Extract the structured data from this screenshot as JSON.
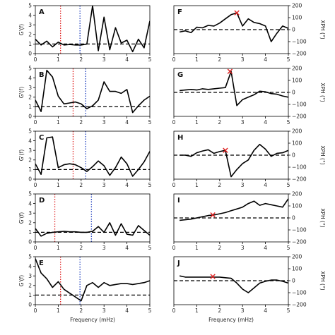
{
  "chart_data": [
    {
      "panel": "A",
      "side": "left",
      "type": "line",
      "ylabel": "G'(f)",
      "xlabel": "",
      "xlim": [
        0,
        5
      ],
      "ylim": [
        0,
        5
      ],
      "ref": 1,
      "red": 1.1,
      "blue": 1.95,
      "x": [
        0,
        0.25,
        0.5,
        0.75,
        1.0,
        1.25,
        1.5,
        1.75,
        2.0,
        2.25,
        2.5,
        2.75,
        3.0,
        3.25,
        3.5,
        3.75,
        4.0,
        4.25,
        4.5,
        4.75,
        5.0
      ],
      "y": [
        1.5,
        0.9,
        1.3,
        0.7,
        1.2,
        0.9,
        0.95,
        0.9,
        0.9,
        1.0,
        5.0,
        0.3,
        3.8,
        0.4,
        2.7,
        1.1,
        1.4,
        0.2,
        1.5,
        0.6,
        3.4
      ]
    },
    {
      "panel": "B",
      "side": "left",
      "type": "line",
      "ylabel": "G'(f)",
      "xlabel": "",
      "xlim": [
        0,
        5
      ],
      "ylim": [
        0,
        5
      ],
      "ref": 1,
      "red": 1.65,
      "blue": 2.2,
      "x": [
        0,
        0.25,
        0.5,
        0.75,
        1.0,
        1.25,
        1.5,
        1.75,
        2.0,
        2.25,
        2.5,
        2.75,
        3.0,
        3.25,
        3.5,
        3.75,
        4.0,
        4.25,
        4.5,
        4.75,
        5.0
      ],
      "y": [
        1.7,
        0.5,
        4.8,
        4.1,
        2.1,
        1.3,
        1.4,
        1.5,
        1.3,
        0.8,
        1.1,
        1.7,
        3.6,
        2.6,
        2.6,
        2.4,
        2.8,
        0.4,
        1.1,
        1.7,
        2.1
      ]
    },
    {
      "panel": "C",
      "side": "left",
      "type": "line",
      "ylabel": "G'(f)",
      "xlabel": "",
      "xlim": [
        0,
        5
      ],
      "ylim": [
        0,
        5
      ],
      "ref": 1,
      "red": 1.65,
      "blue": 2.2,
      "x": [
        0,
        0.25,
        0.5,
        0.75,
        1.0,
        1.25,
        1.5,
        1.75,
        2.0,
        2.25,
        2.5,
        2.75,
        3.0,
        3.25,
        3.5,
        3.75,
        4.0,
        4.25,
        4.5,
        4.75,
        5.0
      ],
      "y": [
        1.6,
        0.5,
        4.3,
        4.4,
        1.2,
        1.5,
        1.6,
        1.5,
        1.2,
        0.8,
        1.3,
        1.9,
        1.4,
        0.4,
        1.2,
        2.3,
        1.6,
        0.3,
        1.0,
        1.8,
        2.9
      ]
    },
    {
      "panel": "D",
      "side": "left",
      "type": "line",
      "ylabel": "G'(f)",
      "xlabel": "",
      "xlim": [
        0,
        5
      ],
      "ylim": [
        0,
        5
      ],
      "ref": 1,
      "red": 0.85,
      "blue": 2.45,
      "x": [
        0,
        0.25,
        0.5,
        0.75,
        1.0,
        1.25,
        1.5,
        1.75,
        2.0,
        2.25,
        2.5,
        2.75,
        3.0,
        3.25,
        3.5,
        3.75,
        4.0,
        4.25,
        4.5,
        4.75,
        5.0
      ],
      "y": [
        1.4,
        0.6,
        0.9,
        1.0,
        1.05,
        1.1,
        1.05,
        1.05,
        1.0,
        1.0,
        1.1,
        1.6,
        1.0,
        2.0,
        0.7,
        1.9,
        0.8,
        0.7,
        1.7,
        1.2,
        0.7
      ]
    },
    {
      "panel": "E",
      "side": "left",
      "type": "line",
      "ylabel": "G'(f)",
      "xlabel": "Frequency (mHz)",
      "xlim": [
        0,
        5
      ],
      "ylim": [
        0,
        5
      ],
      "ref": 1,
      "red": 1.1,
      "blue": 1.95,
      "x": [
        0,
        0.25,
        0.5,
        0.75,
        1.0,
        1.25,
        1.5,
        1.75,
        2.0,
        2.25,
        2.5,
        2.75,
        3.0,
        3.25,
        3.5,
        3.75,
        4.0,
        4.25,
        4.5,
        4.75,
        5.0
      ],
      "y": [
        4.8,
        3.3,
        2.7,
        1.8,
        2.4,
        1.6,
        1.2,
        0.8,
        0.4,
        2.0,
        2.3,
        1.8,
        2.3,
        2.0,
        2.1,
        2.2,
        2.2,
        2.1,
        2.2,
        2.3,
        2.5
      ]
    },
    {
      "panel": "F",
      "side": "right",
      "type": "line",
      "ylabel": "XPH (°)",
      "xlabel": "",
      "xlim": [
        0,
        5
      ],
      "ylim": [
        -200,
        200
      ],
      "ref": 0,
      "marker": [
        2.75,
        140
      ],
      "x": [
        0.25,
        0.5,
        0.75,
        1.0,
        1.25,
        1.5,
        1.75,
        2.0,
        2.25,
        2.5,
        2.75,
        3.0,
        3.25,
        3.5,
        3.75,
        4.0,
        4.25,
        4.5,
        4.75,
        5.0
      ],
      "y": [
        -20,
        -10,
        -25,
        20,
        15,
        35,
        30,
        55,
        90,
        125,
        140,
        30,
        90,
        60,
        50,
        30,
        -100,
        -30,
        30,
        10
      ]
    },
    {
      "panel": "G",
      "side": "right",
      "type": "line",
      "ylabel": "XPH (°)",
      "xlabel": "",
      "xlim": [
        0,
        5
      ],
      "ylim": [
        -200,
        200
      ],
      "ref": 0,
      "marker": [
        2.45,
        175
      ],
      "x": [
        0.25,
        0.5,
        0.75,
        1.0,
        1.25,
        1.5,
        1.75,
        2.0,
        2.25,
        2.5,
        2.75,
        3.0,
        3.25,
        3.5,
        3.75,
        4.0,
        4.25,
        4.5,
        4.75,
        5.0
      ],
      "y": [
        15,
        20,
        25,
        20,
        30,
        25,
        30,
        35,
        40,
        175,
        -110,
        -60,
        -40,
        -20,
        10,
        5,
        -10,
        -15,
        -30,
        -40
      ]
    },
    {
      "panel": "H",
      "side": "right",
      "type": "line",
      "ylabel": "XPH (°)",
      "xlabel": "",
      "xlim": [
        0,
        5
      ],
      "ylim": [
        -200,
        200
      ],
      "ref": 0,
      "marker": [
        2.25,
        40
      ],
      "x": [
        0.25,
        0.5,
        0.75,
        1.0,
        1.25,
        1.5,
        1.75,
        2.0,
        2.25,
        2.5,
        2.75,
        3.0,
        3.25,
        3.5,
        3.75,
        4.0,
        4.25,
        4.5,
        4.75,
        5.0
      ],
      "y": [
        0,
        0,
        -10,
        20,
        35,
        45,
        15,
        30,
        40,
        -180,
        -120,
        -70,
        -40,
        40,
        90,
        50,
        -10,
        15,
        20,
        40
      ]
    },
    {
      "panel": "I",
      "side": "right",
      "type": "line",
      "ylabel": "XPH (°)",
      "xlabel": "",
      "xlim": [
        0,
        5
      ],
      "ylim": [
        -200,
        200
      ],
      "ref": 0,
      "marker": [
        1.7,
        25
      ],
      "x": [
        0.25,
        0.5,
        0.75,
        1.0,
        1.25,
        1.5,
        1.75,
        2.0,
        2.25,
        2.5,
        2.75,
        3.0,
        3.25,
        3.5,
        3.75,
        4.0,
        4.25,
        4.5,
        4.75,
        5.0
      ],
      "y": [
        -20,
        -15,
        -10,
        0,
        10,
        20,
        25,
        35,
        45,
        60,
        75,
        90,
        120,
        140,
        105,
        120,
        110,
        100,
        90,
        160
      ]
    },
    {
      "panel": "J",
      "side": "right",
      "type": "line",
      "ylabel": "XPH (°)",
      "xlabel": "Frequency (mHz)",
      "xlim": [
        0,
        5
      ],
      "ylim": [
        -200,
        200
      ],
      "ref": 0,
      "marker": [
        1.7,
        35
      ],
      "x": [
        0.25,
        0.5,
        0.75,
        1.0,
        1.25,
        1.5,
        1.75,
        2.0,
        2.25,
        2.5,
        2.75,
        3.0,
        3.25,
        3.5,
        3.75,
        4.0,
        4.25,
        4.5,
        4.75,
        5.0
      ],
      "y": [
        40,
        30,
        30,
        30,
        30,
        30,
        30,
        30,
        25,
        20,
        -20,
        -70,
        -100,
        -60,
        -20,
        -5,
        5,
        5,
        -5,
        -20
      ]
    }
  ],
  "axis_labels": {
    "left_y": "G'(f)",
    "right_y": "XPH (°)",
    "x": "Frequency (mHz)"
  },
  "left_yticks": [
    "0",
    "1",
    "2",
    "3",
    "4",
    "5"
  ],
  "right_yticks": [
    "−200",
    "−100",
    "0",
    "100",
    "200"
  ],
  "xticks": [
    "0",
    "1",
    "2",
    "3",
    "4",
    "5"
  ]
}
